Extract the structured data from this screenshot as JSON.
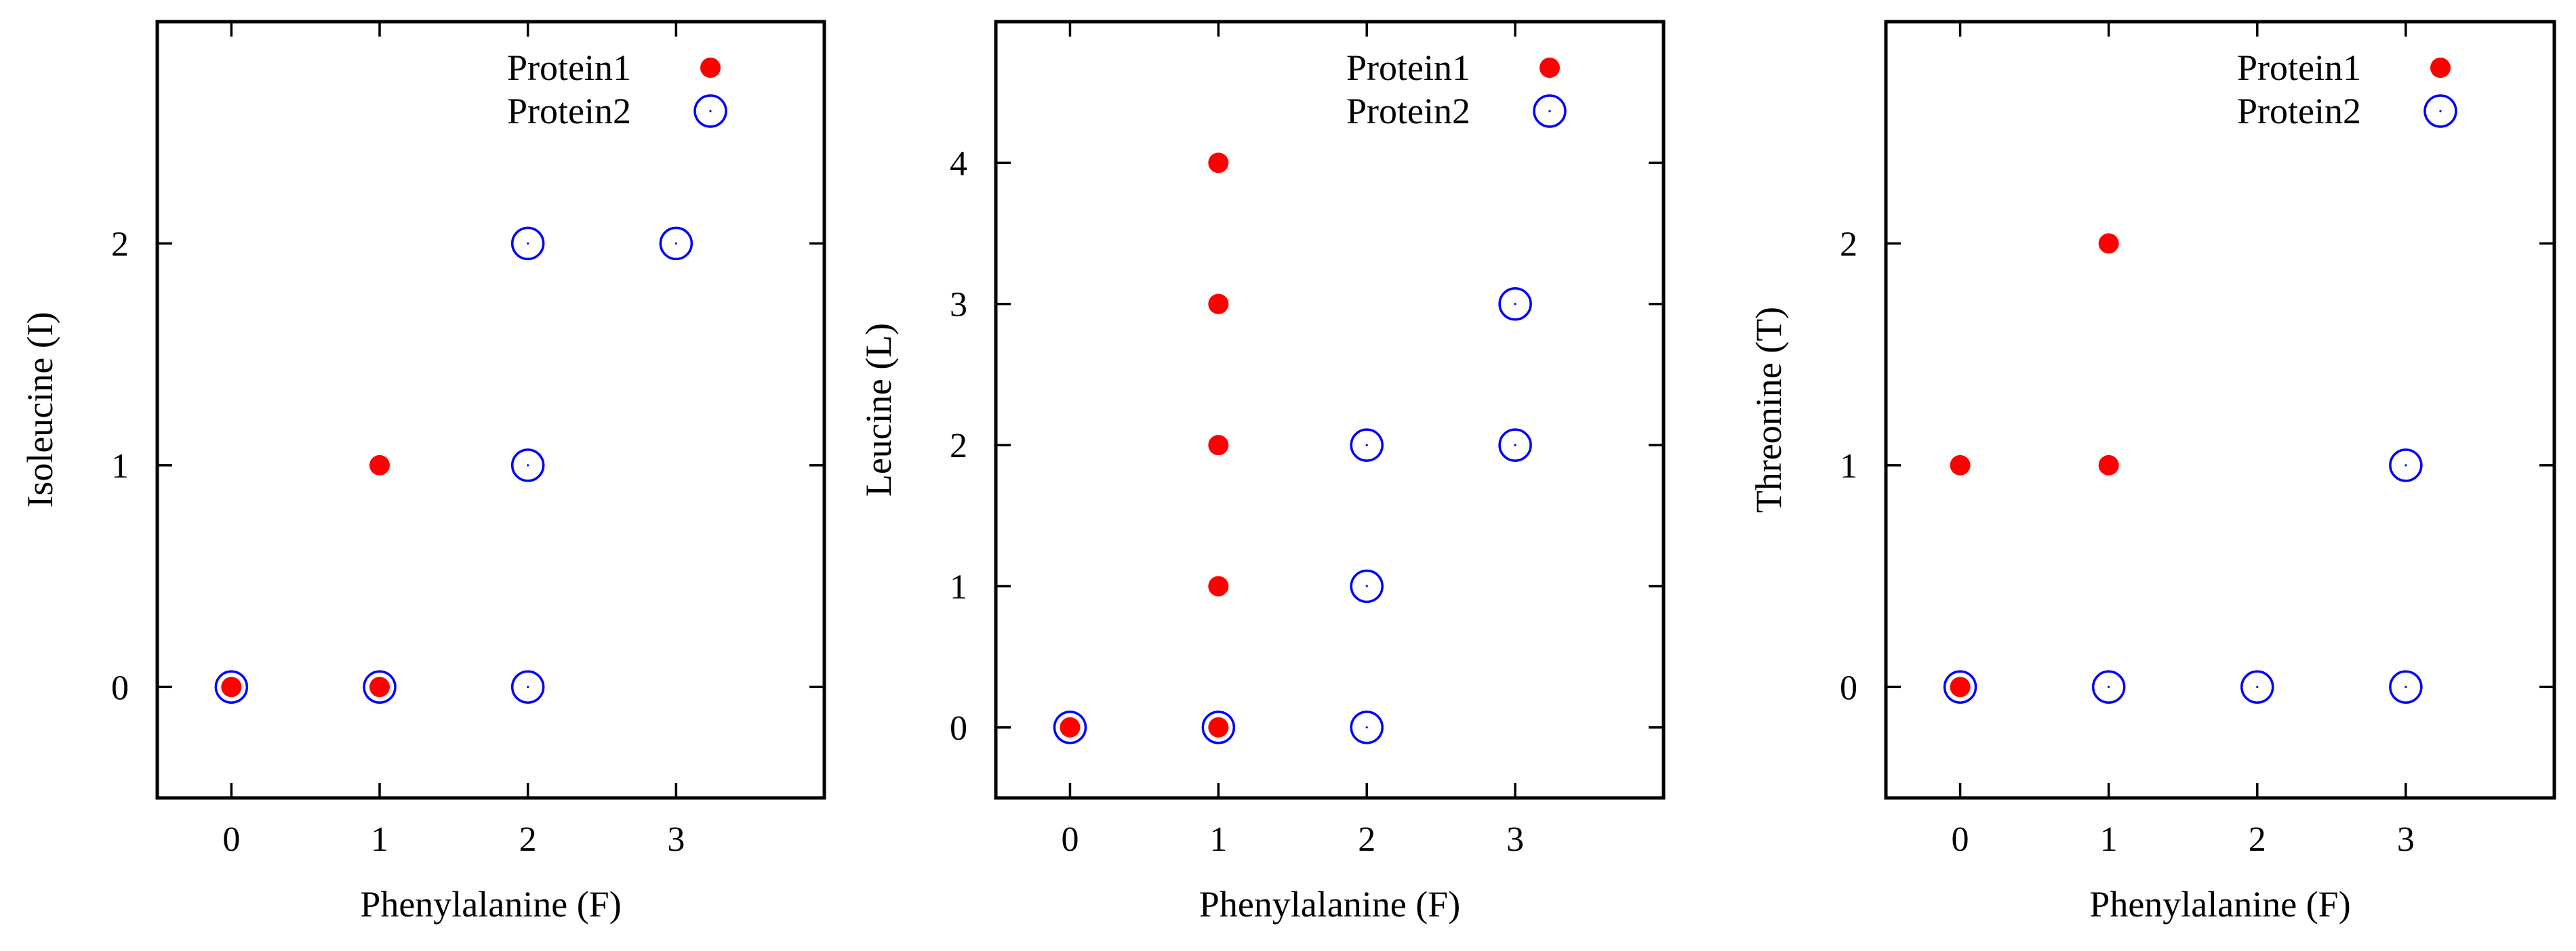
{
  "chart_data": [
    {
      "type": "scatter",
      "title": "",
      "xlabel": "Phenylalanine (F)",
      "ylabel": "Isoleucine (I)",
      "xlim": [
        -0.5,
        4.0
      ],
      "ylim": [
        -0.5,
        3.0
      ],
      "xticks": [
        0,
        1,
        2,
        3
      ],
      "yticks": [
        0,
        1,
        2
      ],
      "grid": false,
      "legend_position": "top-right",
      "series": [
        {
          "name": "Protein1",
          "marker": "filled-circle",
          "color": "#ff0000",
          "points": [
            [
              0,
              0
            ],
            [
              1,
              0
            ],
            [
              1,
              1
            ]
          ]
        },
        {
          "name": "Protein2",
          "marker": "open-circle",
          "color": "#0000ff",
          "points": [
            [
              0,
              0
            ],
            [
              1,
              0
            ],
            [
              2,
              0
            ],
            [
              2,
              1
            ],
            [
              2,
              2
            ],
            [
              3,
              2
            ]
          ]
        }
      ]
    },
    {
      "type": "scatter",
      "title": "",
      "xlabel": "Phenylalanine (F)",
      "ylabel": "Leucine (L)",
      "xlim": [
        -0.5,
        4.0
      ],
      "ylim": [
        -0.5,
        5.0
      ],
      "xticks": [
        0,
        1,
        2,
        3
      ],
      "yticks": [
        0,
        1,
        2,
        3,
        4
      ],
      "grid": false,
      "legend_position": "top-right",
      "series": [
        {
          "name": "Protein1",
          "marker": "filled-circle",
          "color": "#ff0000",
          "points": [
            [
              0,
              0
            ],
            [
              1,
              0
            ],
            [
              1,
              1
            ],
            [
              1,
              2
            ],
            [
              1,
              3
            ],
            [
              1,
              4
            ]
          ]
        },
        {
          "name": "Protein2",
          "marker": "open-circle",
          "color": "#0000ff",
          "points": [
            [
              0,
              0
            ],
            [
              1,
              0
            ],
            [
              2,
              0
            ],
            [
              2,
              1
            ],
            [
              2,
              2
            ],
            [
              3,
              2
            ],
            [
              3,
              3
            ]
          ]
        }
      ]
    },
    {
      "type": "scatter",
      "title": "",
      "xlabel": "Phenylalanine (F)",
      "ylabel": "Threonine (T)",
      "xlim": [
        -0.5,
        4.0
      ],
      "ylim": [
        -0.5,
        3.0
      ],
      "xticks": [
        0,
        1,
        2,
        3
      ],
      "yticks": [
        0,
        1,
        2
      ],
      "grid": false,
      "legend_position": "top-right",
      "series": [
        {
          "name": "Protein1",
          "marker": "filled-circle",
          "color": "#ff0000",
          "points": [
            [
              0,
              0
            ],
            [
              0,
              1
            ],
            [
              1,
              1
            ],
            [
              1,
              2
            ]
          ]
        },
        {
          "name": "Protein2",
          "marker": "open-circle",
          "color": "#0000ff",
          "points": [
            [
              0,
              0
            ],
            [
              1,
              0
            ],
            [
              2,
              0
            ],
            [
              3,
              0
            ],
            [
              3,
              1
            ]
          ]
        }
      ]
    }
  ]
}
